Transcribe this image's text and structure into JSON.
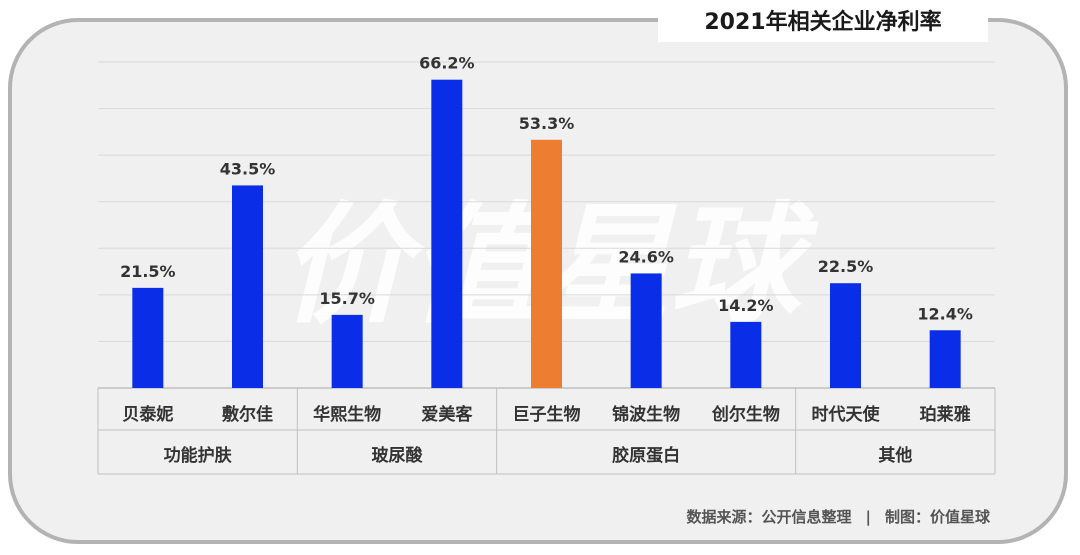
{
  "title": "2021年相关企业净利率",
  "watermark": "价值星球",
  "footer": {
    "source": "数据来源：公开信息整理",
    "separator": "|",
    "credit": "制图：价值星球"
  },
  "chart_data": {
    "type": "bar",
    "title": "2021年相关企业净利率",
    "unit": "%",
    "ylim": [
      0,
      70
    ],
    "grid": true,
    "categories": [
      "贝泰妮",
      "敷尔佳",
      "华熙生物",
      "爱美客",
      "巨子生物",
      "锦波生物",
      "创尔生物",
      "时代天使",
      "珀莱雅"
    ],
    "values": [
      21.5,
      43.5,
      15.7,
      66.2,
      53.3,
      24.6,
      14.2,
      22.5,
      12.4
    ],
    "labels": [
      "21.5%",
      "43.5%",
      "15.7%",
      "66.2%",
      "53.3%",
      "24.6%",
      "14.2%",
      "22.5%",
      "12.4%"
    ],
    "groups": [
      {
        "name": "功能护肤",
        "members": [
          "贝泰妮",
          "敷尔佳"
        ]
      },
      {
        "name": "玻尿酸",
        "members": [
          "华熙生物",
          "爱美客"
        ]
      },
      {
        "name": "胶原蛋白",
        "members": [
          "巨子生物",
          "锦波生物",
          "创尔生物"
        ]
      },
      {
        "name": "其他",
        "members": [
          "时代天使",
          "珀莱雅"
        ]
      }
    ],
    "colors": {
      "default": "#0a2ee8",
      "highlight": "#ed7d31",
      "grid": "#d9d9d9",
      "axis": "#bfbfbf"
    },
    "highlight": "巨子生物"
  }
}
